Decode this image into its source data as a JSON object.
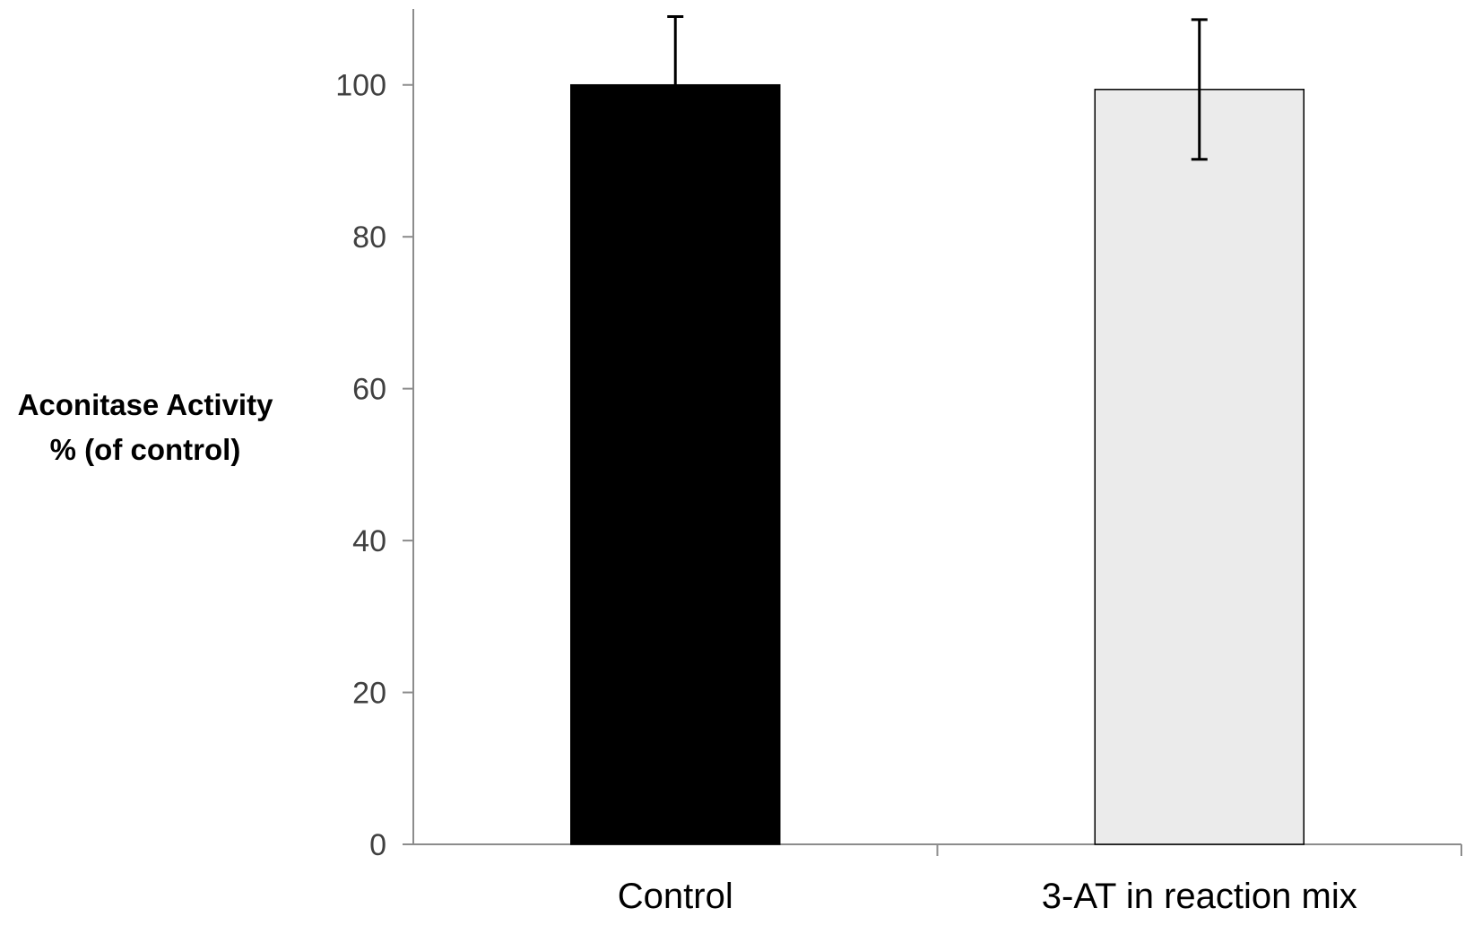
{
  "chart_data": {
    "type": "bar",
    "categories": [
      "Control",
      "3-AT in reaction mix"
    ],
    "values": [
      100,
      99.4
    ],
    "errors": [
      9,
      9.2
    ],
    "bar_colors": [
      "#000000",
      "#ebebeb"
    ],
    "title": "",
    "ylabel_lines": [
      "Aconitase Activity",
      "% (of control)"
    ],
    "xlabel": "",
    "ylim": [
      0,
      110
    ],
    "yticks": [
      0,
      20,
      40,
      60,
      80,
      100
    ],
    "grid": false,
    "legend": "none"
  }
}
